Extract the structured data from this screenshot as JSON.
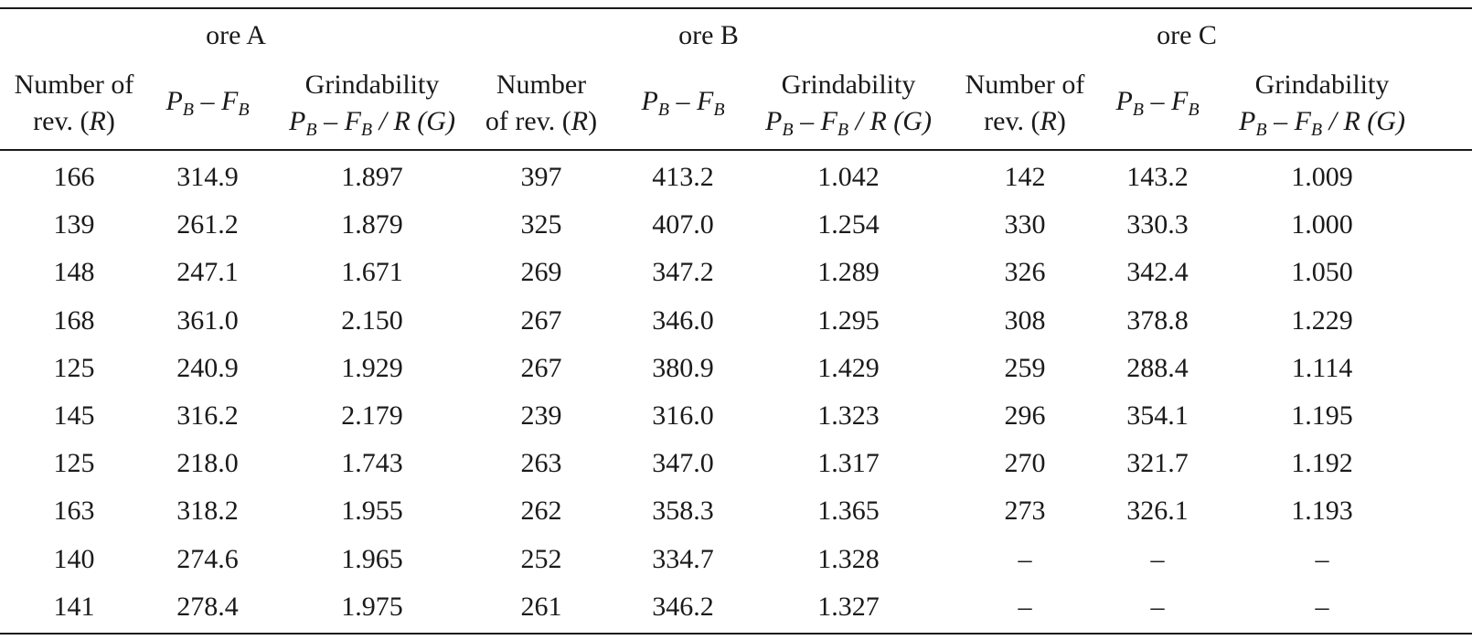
{
  "ore_titles": [
    "ore A",
    "ore B",
    "ore C"
  ],
  "headers": {
    "rev_a": [
      "Number of",
      "rev. (R)"
    ],
    "rev_b": [
      "Number",
      "of rev. (R)"
    ],
    "rev_c": [
      "Number of",
      "rev. (R)"
    ],
    "diff": "PB – FB",
    "grind_title": "Grindability",
    "grind_formula": "PB – FB / R (G)"
  },
  "rows": [
    [
      "166",
      "314.9",
      "1.897",
      "397",
      "413.2",
      "1.042",
      "142",
      "143.2",
      "1.009"
    ],
    [
      "139",
      "261.2",
      "1.879",
      "325",
      "407.0",
      "1.254",
      "330",
      "330.3",
      "1.000"
    ],
    [
      "148",
      "247.1",
      "1.671",
      "269",
      "347.2",
      "1.289",
      "326",
      "342.4",
      "1.050"
    ],
    [
      "168",
      "361.0",
      "2.150",
      "267",
      "346.0",
      "1.295",
      "308",
      "378.8",
      "1.229"
    ],
    [
      "125",
      "240.9",
      "1.929",
      "267",
      "380.9",
      "1.429",
      "259",
      "288.4",
      "1.114"
    ],
    [
      "145",
      "316.2",
      "2.179",
      "239",
      "316.0",
      "1.323",
      "296",
      "354.1",
      "1.195"
    ],
    [
      "125",
      "218.0",
      "1.743",
      "263",
      "347.0",
      "1.317",
      "270",
      "321.7",
      "1.192"
    ],
    [
      "163",
      "318.2",
      "1.955",
      "262",
      "358.3",
      "1.365",
      "273",
      "326.1",
      "1.193"
    ],
    [
      "140",
      "274.6",
      "1.965",
      "252",
      "334.7",
      "1.328",
      "–",
      "–",
      "–"
    ],
    [
      "141",
      "278.4",
      "1.975",
      "261",
      "346.2",
      "1.327",
      "–",
      "–",
      "–"
    ]
  ]
}
